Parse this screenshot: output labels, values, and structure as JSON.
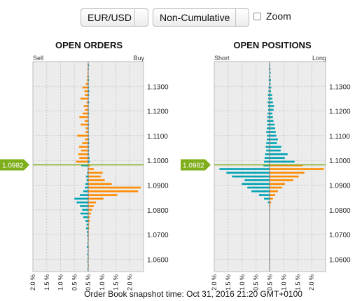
{
  "controls": {
    "pair": "EUR/USD",
    "mode": "Non-Cumulative",
    "zoom_label": "Zoom",
    "zoom_checked": false
  },
  "footer": "Order Book snapshot time: Oct 31, 2016 21:20 GMT+0100",
  "colors": {
    "orange": "#ff8c00",
    "teal": "#00a3b4",
    "price": "#7fae1b",
    "grid": "#c9c9c9",
    "panel": "#ececec"
  },
  "chart_data": [
    {
      "type": "bar",
      "title": "OPEN ORDERS",
      "left_label": "Sell",
      "right_label": "Buy",
      "current_price": 1.0982,
      "current_price_label": "1.0982",
      "ylim": [
        1.055,
        1.14
      ],
      "xlim": [
        -2.0,
        2.0
      ],
      "y_ticks": [
        "1.1300",
        "1.1200",
        "1.1100",
        "1.1000",
        "1.0900",
        "1.0800",
        "1.0700",
        "1.0600"
      ],
      "x_ticks": [
        "2.0 %",
        "1.5 %",
        "1.0 %",
        "0.5 %",
        "0.5 %",
        "1.0 %",
        "1.5 %",
        "2.0 %"
      ],
      "left_series": {
        "name": "Sell",
        "color": "orange_above_teal_below",
        "points": [
          [
            1.1385,
            0.02
          ],
          [
            1.137,
            0.03
          ],
          [
            1.1355,
            0.03
          ],
          [
            1.134,
            0.04
          ],
          [
            1.1325,
            0.05
          ],
          [
            1.131,
            0.09
          ],
          [
            1.1295,
            0.21
          ],
          [
            1.128,
            0.14
          ],
          [
            1.1265,
            0.12
          ],
          [
            1.125,
            0.28
          ],
          [
            1.1235,
            0.06
          ],
          [
            1.122,
            0.16
          ],
          [
            1.1205,
            0.12
          ],
          [
            1.119,
            0.2
          ],
          [
            1.1175,
            0.32
          ],
          [
            1.116,
            0.13
          ],
          [
            1.1145,
            0.27
          ],
          [
            1.113,
            0.09
          ],
          [
            1.1115,
            0.1
          ],
          [
            1.11,
            0.4
          ],
          [
            1.1085,
            0.12
          ],
          [
            1.107,
            0.22
          ],
          [
            1.1055,
            0.33
          ],
          [
            1.104,
            0.26
          ],
          [
            1.1025,
            0.36
          ],
          [
            1.101,
            0.32
          ],
          [
            1.0995,
            0.45
          ],
          [
            1.098,
            0.25
          ],
          [
            1.0965,
            0.02
          ],
          [
            1.095,
            0.04
          ],
          [
            1.0935,
            0.08
          ],
          [
            1.092,
            0.06
          ],
          [
            1.0905,
            0.1
          ],
          [
            1.089,
            0.12
          ],
          [
            1.0875,
            0.18
          ],
          [
            1.086,
            0.3
          ],
          [
            1.0845,
            0.5
          ],
          [
            1.083,
            0.42
          ],
          [
            1.0815,
            0.3
          ],
          [
            1.08,
            0.22
          ],
          [
            1.0785,
            0.28
          ],
          [
            1.077,
            0.18
          ],
          [
            1.0755,
            0.1
          ],
          [
            1.074,
            0.06
          ],
          [
            1.0725,
            0.08
          ],
          [
            1.071,
            0.05
          ],
          [
            1.0695,
            0.04
          ],
          [
            1.068,
            0.02
          ],
          [
            1.0665,
            0.03
          ],
          [
            1.065,
            0.05
          ],
          [
            1.0635,
            0.02
          ],
          [
            1.062,
            0.04
          ],
          [
            1.0605,
            0.02
          ],
          [
            1.059,
            0.03
          ],
          [
            1.0575,
            0.02
          ],
          [
            1.056,
            0.03
          ]
        ]
      },
      "right_series": {
        "name": "Buy",
        "color": "teal_above_orange_below",
        "points": [
          [
            1.1385,
            0.03
          ],
          [
            1.137,
            0.02
          ],
          [
            1.1355,
            0.01
          ],
          [
            1.134,
            0.02
          ],
          [
            1.1325,
            0.03
          ],
          [
            1.131,
            0.02
          ],
          [
            1.1295,
            0.03
          ],
          [
            1.128,
            0.04
          ],
          [
            1.1265,
            0.03
          ],
          [
            1.125,
            0.02
          ],
          [
            1.1235,
            0.04
          ],
          [
            1.122,
            0.02
          ],
          [
            1.1205,
            0.02
          ],
          [
            1.119,
            0.03
          ],
          [
            1.1175,
            0.02
          ],
          [
            1.116,
            0.02
          ],
          [
            1.1145,
            0.03
          ],
          [
            1.113,
            0.02
          ],
          [
            1.1115,
            0.02
          ],
          [
            1.11,
            0.02
          ],
          [
            1.1085,
            0.03
          ],
          [
            1.107,
            0.04
          ],
          [
            1.1055,
            0.03
          ],
          [
            1.104,
            0.03
          ],
          [
            1.1025,
            0.03
          ],
          [
            1.101,
            0.05
          ],
          [
            1.0995,
            0.06
          ],
          [
            1.098,
            0.08
          ],
          [
            1.0965,
            0.2
          ],
          [
            1.095,
            0.52
          ],
          [
            1.0935,
            0.45
          ],
          [
            1.092,
            0.6
          ],
          [
            1.0905,
            0.85
          ],
          [
            1.089,
            1.9
          ],
          [
            1.0875,
            1.8
          ],
          [
            1.086,
            1.05
          ],
          [
            1.0845,
            0.55
          ],
          [
            1.083,
            0.28
          ],
          [
            1.0815,
            0.2
          ],
          [
            1.08,
            0.14
          ],
          [
            1.0785,
            0.1
          ],
          [
            1.077,
            0.06
          ],
          [
            1.0755,
            0.06
          ],
          [
            1.074,
            0.03
          ],
          [
            1.0725,
            0.04
          ],
          [
            1.071,
            0.02
          ],
          [
            1.0695,
            0.02
          ],
          [
            1.068,
            0.02
          ],
          [
            1.0665,
            0.01
          ],
          [
            1.065,
            0.02
          ],
          [
            1.0635,
            0.02
          ],
          [
            1.062,
            0.01
          ],
          [
            1.0605,
            0.02
          ],
          [
            1.059,
            0.01
          ],
          [
            1.0575,
            0.02
          ],
          [
            1.056,
            0.01
          ]
        ]
      }
    },
    {
      "type": "bar",
      "title": "OPEN POSITIONS",
      "left_label": "Short",
      "right_label": "Long",
      "current_price": 1.0982,
      "current_price_label": "1.0982",
      "ylim": [
        1.055,
        1.14
      ],
      "xlim": [
        -2.0,
        2.0
      ],
      "y_ticks": [
        "1.1300",
        "1.1200",
        "1.1100",
        "1.1000",
        "1.0900",
        "1.0800",
        "1.0700",
        "1.0600"
      ],
      "x_ticks": [
        "2.0 %",
        "1.5 %",
        "1.0 %",
        "0.5 %",
        "0.5 %",
        "1.0 %",
        "1.5 %",
        "2.0 %"
      ],
      "left_series": {
        "name": "Short",
        "color": "teal",
        "points": [
          [
            1.1385,
            0.01
          ],
          [
            1.137,
            0.02
          ],
          [
            1.1355,
            0.01
          ],
          [
            1.134,
            0.02
          ],
          [
            1.1325,
            0.03
          ],
          [
            1.131,
            0.02
          ],
          [
            1.1295,
            0.04
          ],
          [
            1.128,
            0.04
          ],
          [
            1.1265,
            0.06
          ],
          [
            1.125,
            0.05
          ],
          [
            1.1235,
            0.07
          ],
          [
            1.122,
            0.06
          ],
          [
            1.1205,
            0.05
          ],
          [
            1.119,
            0.07
          ],
          [
            1.1175,
            0.08
          ],
          [
            1.116,
            0.09
          ],
          [
            1.1145,
            0.08
          ],
          [
            1.113,
            0.1
          ],
          [
            1.1115,
            0.12
          ],
          [
            1.11,
            0.09
          ],
          [
            1.1085,
            0.1
          ],
          [
            1.107,
            0.12
          ],
          [
            1.1055,
            0.14
          ],
          [
            1.104,
            0.12
          ],
          [
            1.1025,
            0.16
          ],
          [
            1.101,
            0.18
          ],
          [
            1.0995,
            0.2
          ],
          [
            1.098,
            0.22
          ],
          [
            1.0965,
            1.8
          ],
          [
            1.095,
            1.55
          ],
          [
            1.0935,
            1.35
          ],
          [
            1.092,
            0.9
          ],
          [
            1.0905,
            1.0
          ],
          [
            1.089,
            0.8
          ],
          [
            1.0875,
            0.65
          ],
          [
            1.086,
            0.38
          ],
          [
            1.0845,
            0.2
          ],
          [
            1.083,
            0.06
          ],
          [
            1.0815,
            0.0
          ]
        ]
      },
      "right_series": {
        "name": "Long",
        "color": "orange_below_teal_above",
        "points": [
          [
            1.1385,
            0.02
          ],
          [
            1.137,
            0.03
          ],
          [
            1.1355,
            0.04
          ],
          [
            1.134,
            0.03
          ],
          [
            1.1325,
            0.05
          ],
          [
            1.131,
            0.04
          ],
          [
            1.1295,
            0.06
          ],
          [
            1.128,
            0.05
          ],
          [
            1.1265,
            0.09
          ],
          [
            1.125,
            0.1
          ],
          [
            1.1235,
            0.12
          ],
          [
            1.122,
            0.16
          ],
          [
            1.1205,
            0.14
          ],
          [
            1.119,
            0.1
          ],
          [
            1.1175,
            0.12
          ],
          [
            1.116,
            0.14
          ],
          [
            1.1145,
            0.18
          ],
          [
            1.113,
            0.2
          ],
          [
            1.1115,
            0.22
          ],
          [
            1.11,
            0.24
          ],
          [
            1.1085,
            0.3
          ],
          [
            1.107,
            0.26
          ],
          [
            1.1055,
            0.42
          ],
          [
            1.104,
            0.4
          ],
          [
            1.1025,
            0.65
          ],
          [
            1.101,
            0.55
          ],
          [
            1.0995,
            0.9
          ],
          [
            1.098,
            1.2
          ],
          [
            1.0965,
            1.95
          ],
          [
            1.095,
            1.25
          ],
          [
            1.0935,
            1.05
          ],
          [
            1.092,
            0.85
          ],
          [
            1.0905,
            0.55
          ],
          [
            1.089,
            0.45
          ],
          [
            1.0875,
            0.3
          ],
          [
            1.086,
            0.2
          ],
          [
            1.0845,
            0.12
          ],
          [
            1.083,
            0.06
          ],
          [
            1.0815,
            0.03
          ]
        ]
      }
    }
  ]
}
